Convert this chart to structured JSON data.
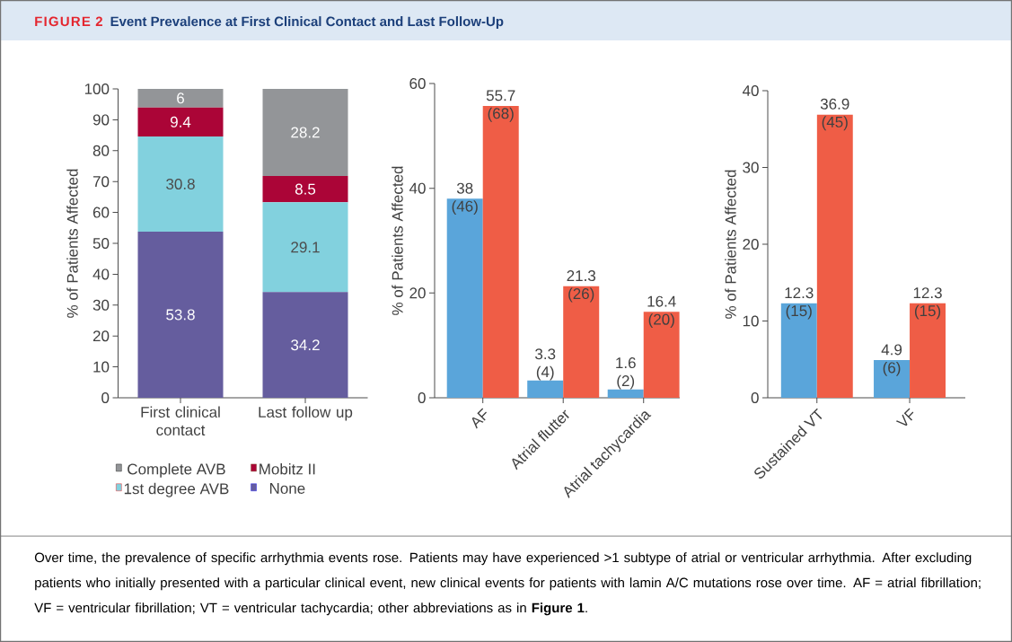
{
  "chart_data": [
    {
      "type": "bar",
      "title": "Event Prevalence at First Clinical Contact and Last Follow-Up",
      "stacked": true,
      "data_labels": true,
      "legend": "bottom",
      "annotations": [
        "FIGURE 2",
        "Over time, the prevalence of specific arrhythmia events rose. Patients may have experienced >1 subtype of atrial or ventricular arrhythmia. After excluding patients who initially presented with a particular clinical event, new clinical events for patients with lamin A/C mutations rose over time. AF = atrial fibrillation; VF = ventricular fibrillation; VT = ventricular tachycardia; other abbreviations as in **Figure 1**."
      ],
      "ylabel": "% of Patients Affected",
      "categories": [
        "First clinical contact",
        "Last follow up"
      ],
      "ylim": [
        0,
        100
      ],
      "yticks": [
        0,
        10,
        20,
        30,
        40,
        50,
        60,
        70,
        80,
        90,
        100
      ],
      "series": [
        {
          "name": "None",
          "color": "#655d9e",
          "values": [
            53.8,
            34.2
          ]
        },
        {
          "name": "1st degree AVB",
          "color": "#82d1de",
          "values": [
            30.8,
            29.1
          ]
        },
        {
          "name": "Mobitz II",
          "color": "#ab0537",
          "values": [
            9.4,
            8.5
          ]
        },
        {
          "name": "Complete AVB",
          "color": "#939598",
          "values": [
            6,
            28.2
          ]
        }
      ]
    },
    {
      "type": "bar",
      "ylabel": "% of Patients Affected",
      "categories": [
        "AF",
        "Atrial flutter",
        "Atrial tachycardia"
      ],
      "ylim": [
        0,
        60
      ],
      "yticks": [
        0,
        20,
        40,
        60
      ],
      "series": [
        {
          "color": "#5aa5da",
          "values": [
            38,
            3.3,
            1.6
          ],
          "value_labels": [
            "38 (46)",
            "3.3 (4)",
            "1.6 (2)"
          ]
        },
        {
          "color": "#ef5d46",
          "values": [
            55.7,
            21.3,
            16.4
          ],
          "value_labels": [
            "55.7 (68)",
            "21.3 (26)",
            "16.4 (20)"
          ]
        }
      ]
    },
    {
      "type": "bar",
      "ylabel": "% of Patients Affected",
      "categories": [
        "Sustained VT",
        "VF"
      ],
      "ylim": [
        0,
        40
      ],
      "yticks": [
        0,
        10,
        20,
        30,
        40
      ],
      "series": [
        {
          "color": "#5aa5da",
          "values": [
            12.3,
            4.9
          ],
          "value_labels": [
            "12.3 (15)",
            "4.9 (6)"
          ]
        },
        {
          "color": "#ef5d46",
          "values": [
            36.9,
            12.3
          ],
          "value_labels": [
            "36.9 (45)",
            "12.3 (15)"
          ]
        }
      ]
    }
  ]
}
